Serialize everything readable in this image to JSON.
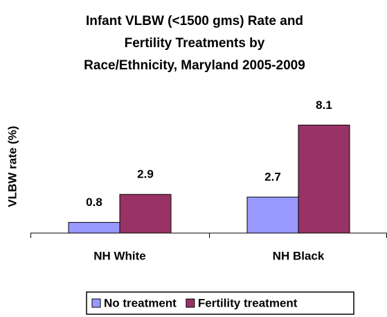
{
  "chart_data": {
    "type": "bar",
    "title": [
      "Infant VLBW (<1500 gms) Rate and",
      "Fertility Treatments by",
      "Race/Ethnicity, Maryland 2005-2009"
    ],
    "y_label": "VLBW rate (%)",
    "categories": [
      "NH White",
      "NH Black"
    ],
    "series": [
      {
        "name": "No treatment",
        "color": "#9999ff",
        "values": [
          0.8,
          2.7
        ]
      },
      {
        "name": "Fertility treatment",
        "color": "#993366",
        "values": [
          2.9,
          8.1
        ]
      }
    ],
    "ylim": [
      0,
      9
    ],
    "legend": "bottom"
  }
}
